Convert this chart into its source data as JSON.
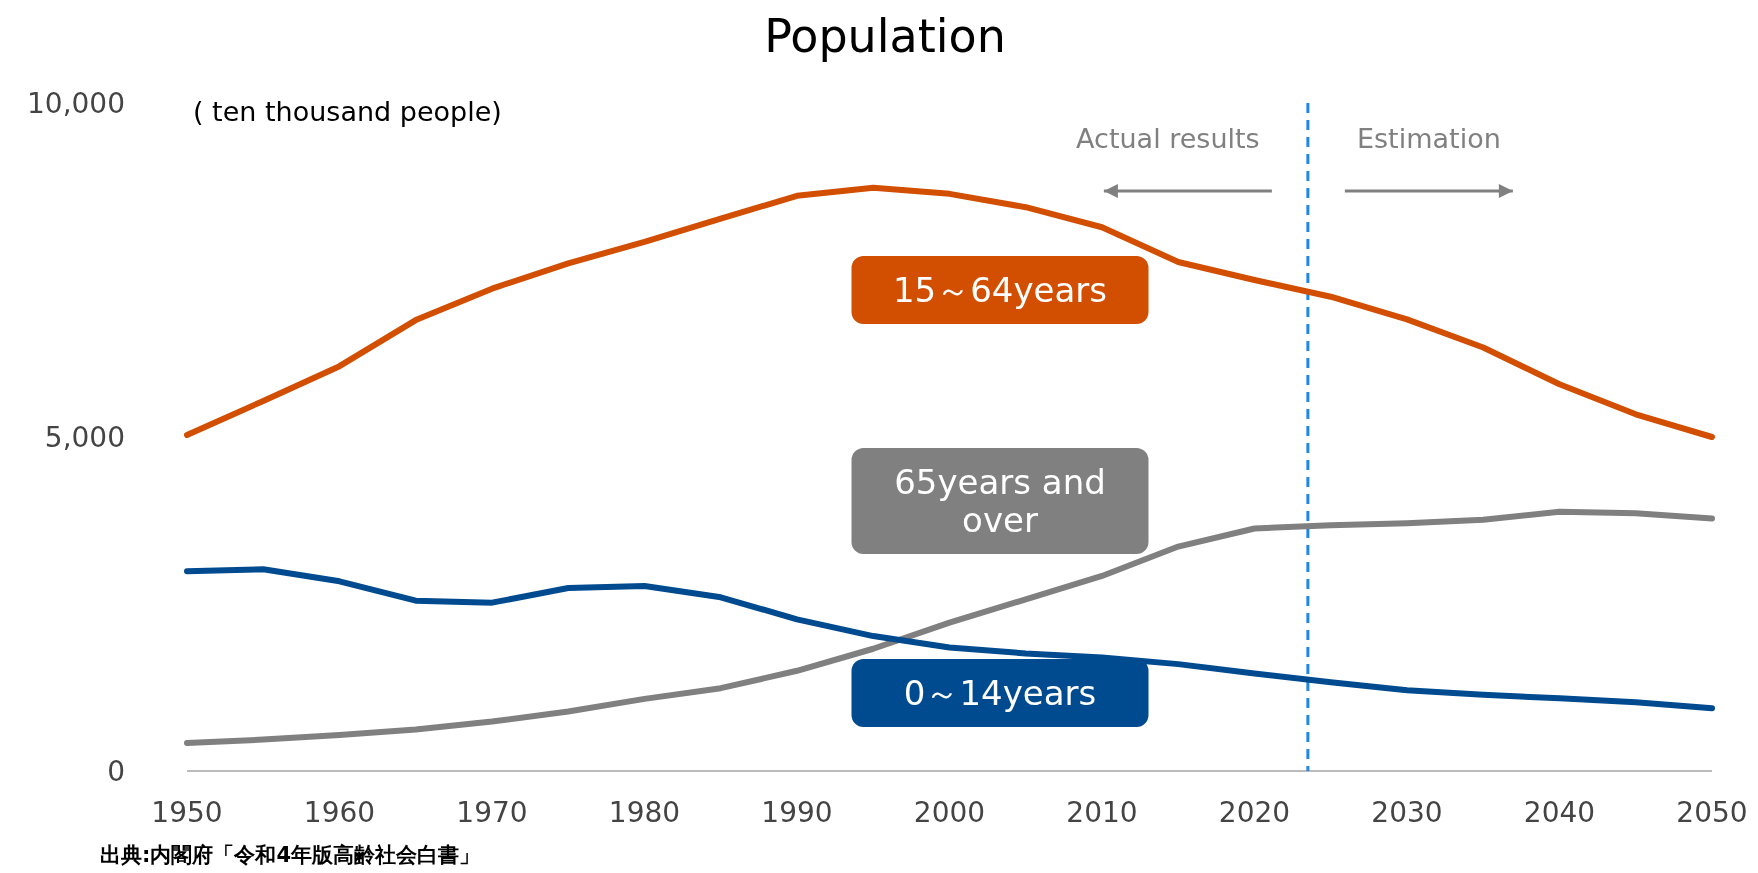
{
  "chart_data": {
    "type": "line",
    "title": "Population",
    "ylabel": "( ten thousand people)",
    "x": [
      1950,
      1955,
      1960,
      1965,
      1970,
      1975,
      1980,
      1985,
      1990,
      1995,
      2000,
      2005,
      2010,
      2015,
      2020,
      2025,
      2030,
      2035,
      2040,
      2045,
      2050
    ],
    "xlim": [
      1950,
      2050
    ],
    "xticks": [
      1950,
      1960,
      1970,
      1980,
      1990,
      2000,
      2010,
      2020,
      2030,
      2040,
      2050
    ],
    "ylim": [
      0,
      10000
    ],
    "yticks": [
      {
        "value": 0,
        "label": "0"
      },
      {
        "value": 5000,
        "label": "5,000"
      },
      {
        "value": 10000,
        "label": "10,000"
      }
    ],
    "series": [
      {
        "name": "15～64years",
        "color": "#d24e00",
        "values": [
          5030,
          5540,
          6060,
          6750,
          7220,
          7600,
          7920,
          8270,
          8610,
          8730,
          8640,
          8440,
          8140,
          7620,
          7350,
          7100,
          6760,
          6340,
          5790,
          5340,
          5000
        ]
      },
      {
        "name": "65years and over",
        "color": "#808080",
        "values": [
          420,
          470,
          540,
          620,
          740,
          890,
          1080,
          1240,
          1500,
          1830,
          2220,
          2570,
          2920,
          3360,
          3630,
          3680,
          3710,
          3760,
          3880,
          3860,
          3780
        ]
      },
      {
        "name": "0～14years",
        "color": "#004a8f",
        "values": [
          2990,
          3020,
          2840,
          2550,
          2520,
          2740,
          2770,
          2600,
          2270,
          2020,
          1850,
          1760,
          1700,
          1600,
          1460,
          1330,
          1210,
          1140,
          1090,
          1030,
          940
        ]
      }
    ],
    "ref_lines": [
      {
        "axis": "x",
        "value": 2023.5,
        "color": "#1e88e5",
        "line_style": "dashed"
      }
    ],
    "annotations": [
      "Actual results",
      "Estimation",
      "出典:内閣府「令和4年版高齢社会白書」"
    ]
  }
}
